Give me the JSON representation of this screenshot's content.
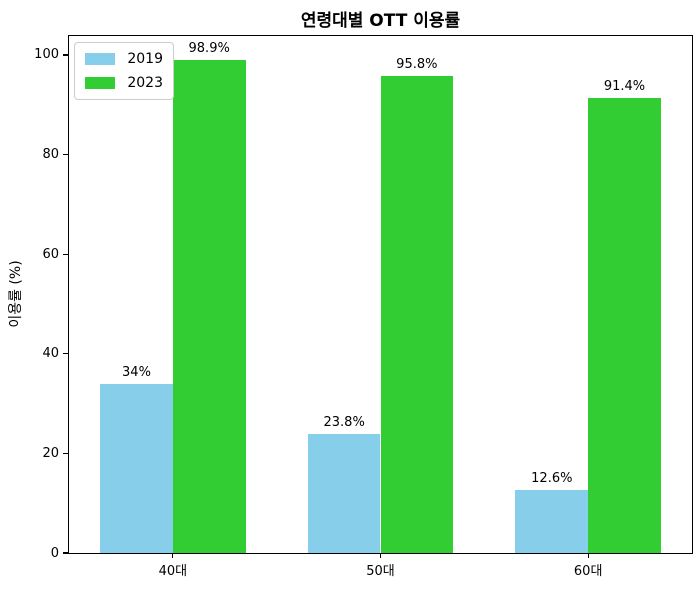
{
  "chart_data": {
    "type": "bar",
    "title": "연령대별 OTT 이용률",
    "xlabel": "",
    "ylabel": "이용률 (%)",
    "categories": [
      "40대",
      "50대",
      "60대"
    ],
    "series": [
      {
        "name": "2019",
        "color": "#87CEEB",
        "values": [
          34,
          23.8,
          12.6
        ],
        "labels": [
          "34%",
          "23.8%",
          "12.6%"
        ]
      },
      {
        "name": "2023",
        "color": "#32CD32",
        "values": [
          98.9,
          95.8,
          91.4
        ],
        "labels": [
          "98.9%",
          "95.8%",
          "91.4%"
        ]
      }
    ],
    "yticks": [
      0,
      20,
      40,
      60,
      80,
      100
    ],
    "ylim": [
      0,
      103.8
    ],
    "bar_width_ratio": 0.35,
    "grid": false,
    "legend_position": "upper left",
    "colors": {
      "axis": "#000000",
      "background": "#ffffff",
      "legend_border": "#cccccc",
      "text": "#000000"
    }
  }
}
